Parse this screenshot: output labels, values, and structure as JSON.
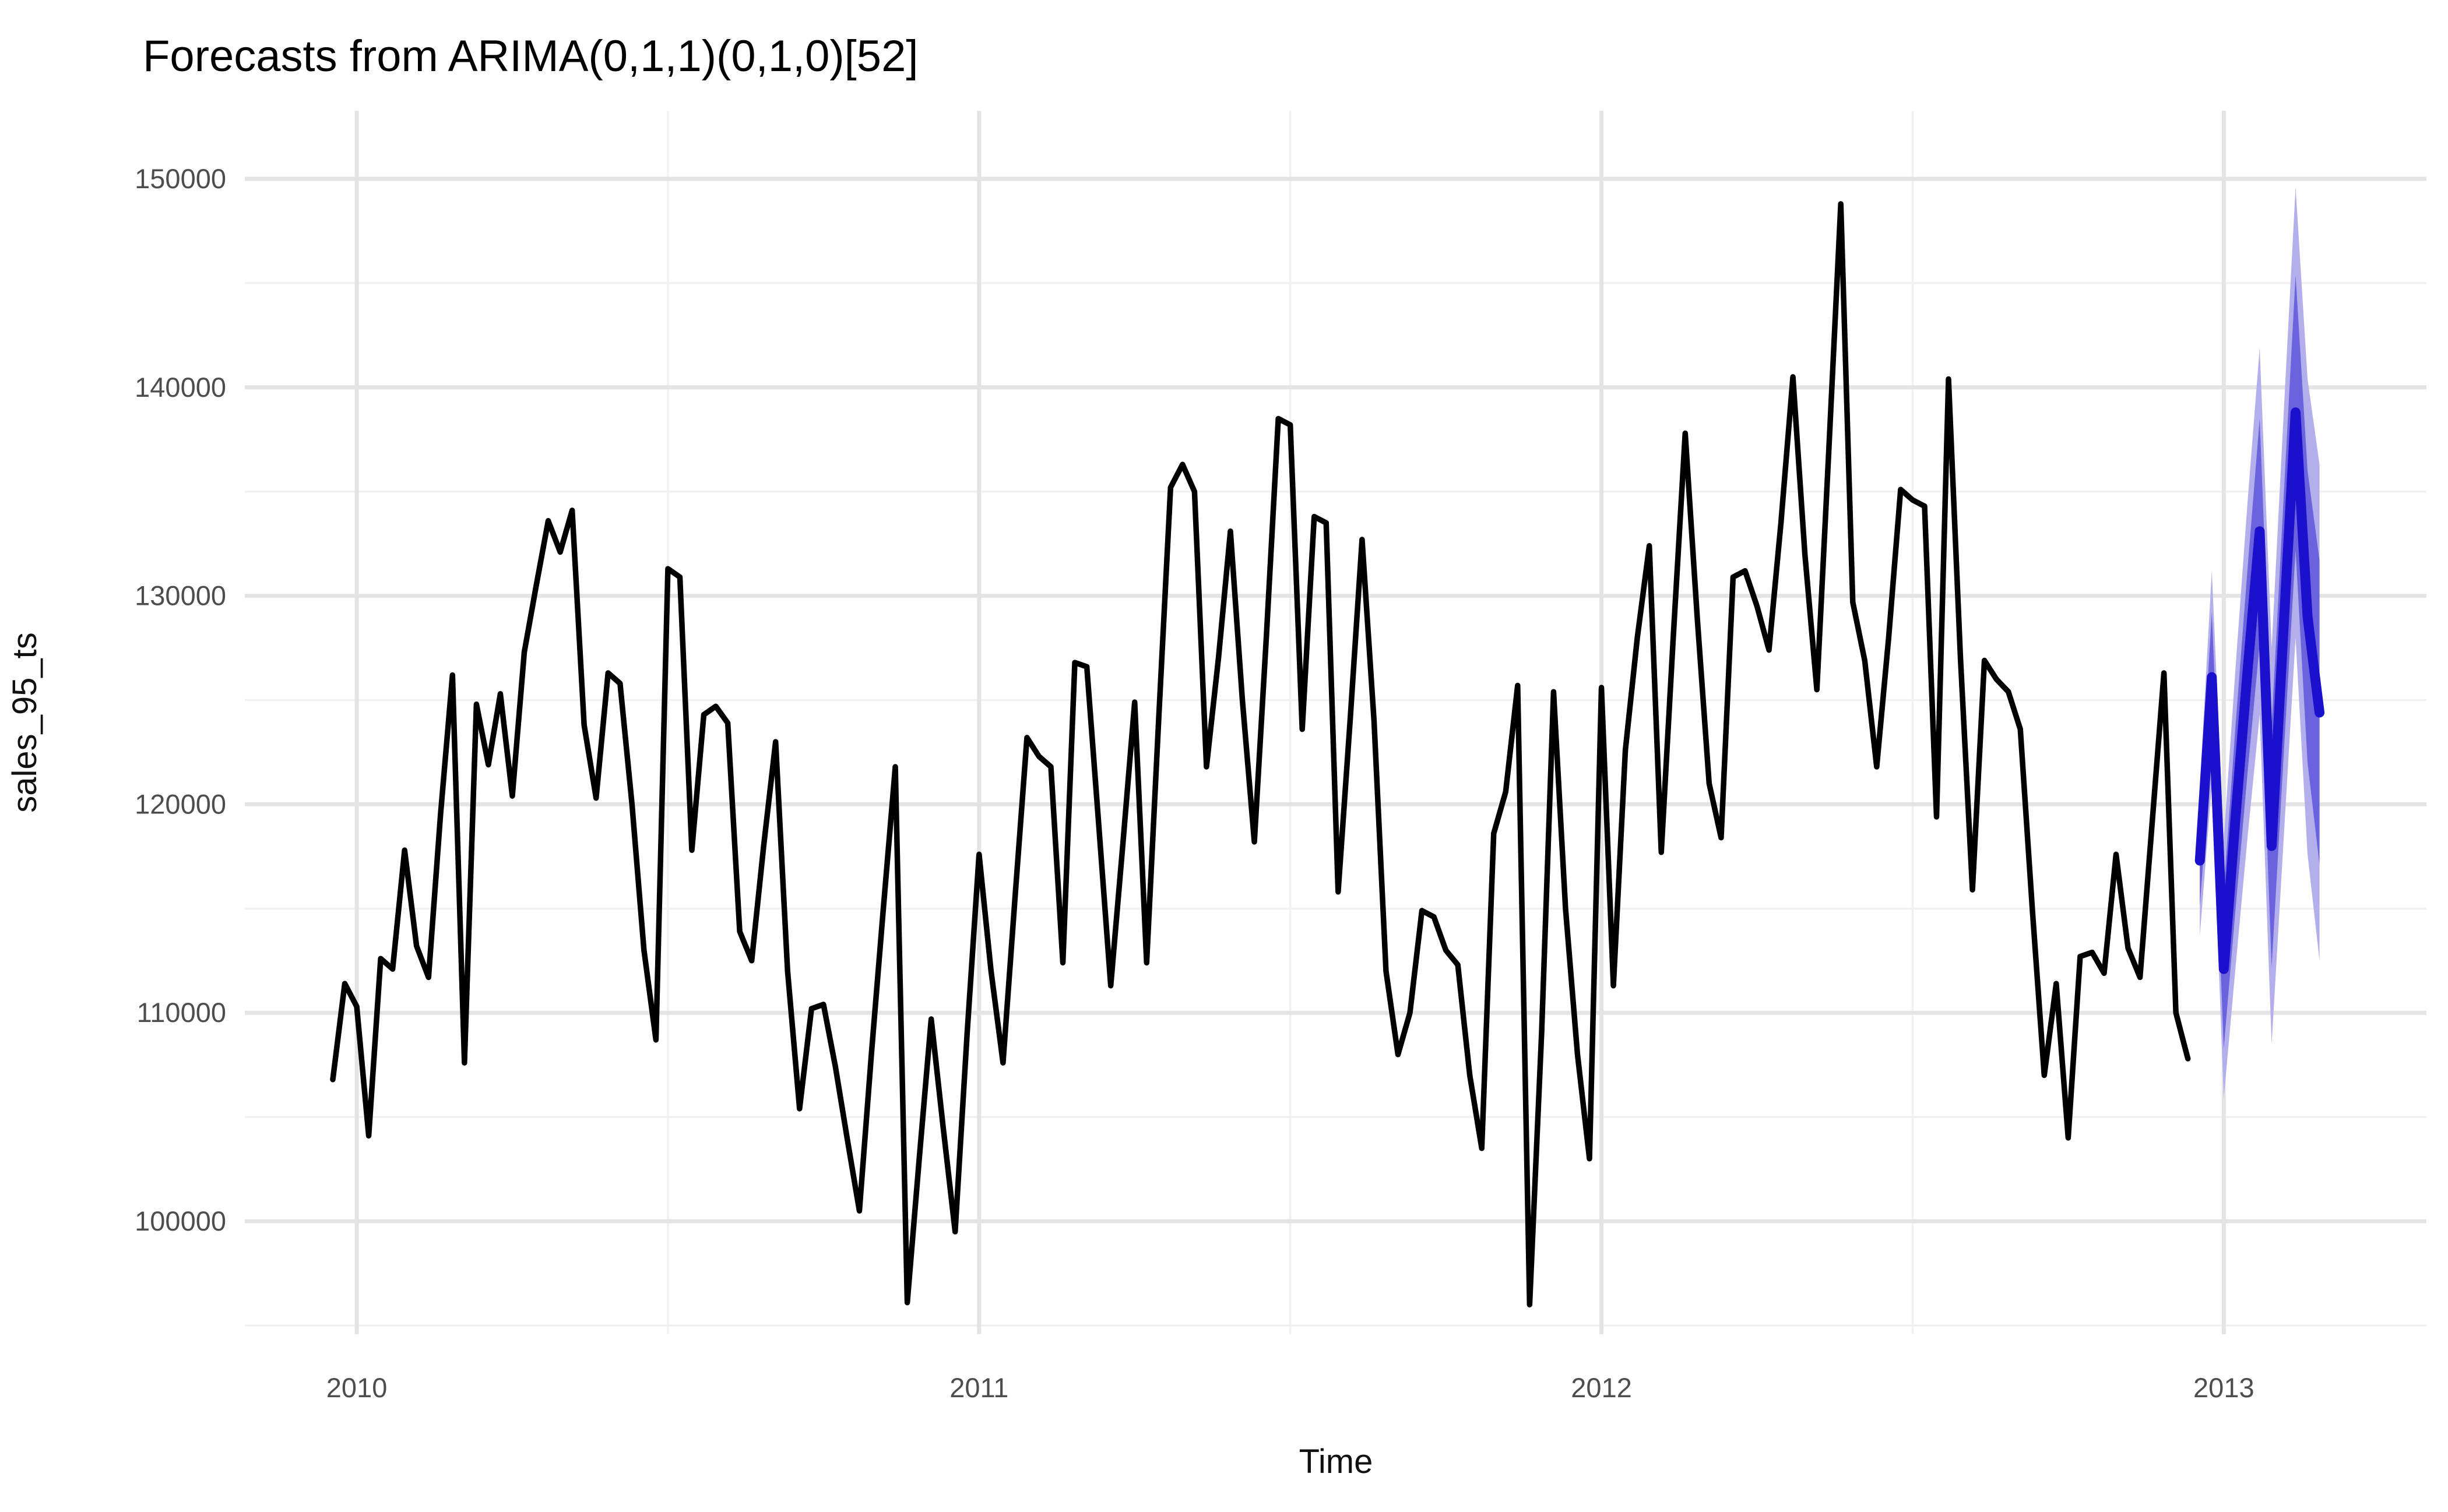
{
  "title": "Forecasts from ARIMA(0,1,1)(0,1,0)[52]",
  "x_axis": {
    "label": "Time",
    "major_ticks": [
      2010,
      2011,
      2012,
      2013
    ],
    "minor_ticks": [
      2010.5,
      2011.5,
      2012.5
    ]
  },
  "y_axis": {
    "label": "sales_95_ts",
    "major_ticks": [
      100000,
      110000,
      120000,
      130000,
      140000,
      150000
    ],
    "minor_ticks": [
      95000,
      105000,
      115000,
      125000,
      135000,
      145000
    ]
  },
  "colors": {
    "background": "#ffffff",
    "observed_line": "#000000",
    "forecast_mean_line": "#1b10cc",
    "band_80": "#6b63dd",
    "band_95": "#b3aeec",
    "grid_major": "#e4e4e4",
    "grid_minor": "#f1f1f1",
    "tick_text": "#4d4d4d",
    "axis_title_text": "#111111",
    "title_text": "#000000"
  },
  "chart_data": {
    "type": "line",
    "title": "Forecasts from ARIMA(0,1,1)(0,1,0)[52]",
    "xlabel": "Time",
    "ylabel": "sales_95_ts",
    "xlim": [
      2009.8201,
      2013.3256
    ],
    "ylim": [
      94579,
      153270
    ],
    "grid": true,
    "legend_position": "none",
    "frequency_per_year": 52,
    "series": [
      {
        "name": "observed",
        "role": "history",
        "start": 2009.9615,
        "step": 0.0192308,
        "values": [
          106800,
          111400,
          110300,
          104100,
          112600,
          112100,
          117800,
          113200,
          111700,
          119500,
          126200,
          107600,
          124800,
          121900,
          125300,
          120400,
          127300,
          130500,
          133600,
          132100,
          134100,
          123800,
          120300,
          126300,
          125800,
          120000,
          113000,
          108700,
          131300,
          130900,
          117800,
          124300,
          124700,
          123900,
          113900,
          112500,
          118000,
          123000,
          112000,
          105400,
          110200,
          110400,
          107400,
          103900,
          100500,
          108000,
          115000,
          121800,
          96100,
          103000,
          109700,
          104500,
          99500,
          109000,
          117600,
          112000,
          107600,
          115500,
          123200,
          122300,
          121800,
          112400,
          126800,
          126600,
          119000,
          111300,
          118000,
          124900,
          112400,
          124000,
          135200,
          136300,
          135000,
          121800,
          127000,
          133100,
          125000,
          118200,
          128000,
          138500,
          138200,
          123600,
          133800,
          133500,
          115800,
          124000,
          132700,
          124000,
          112000,
          108000,
          110000,
          114900,
          114600,
          113000,
          112300,
          107000,
          103500,
          118600,
          120600,
          125700,
          96000,
          109000,
          125400,
          115000,
          108000,
          103000,
          125600,
          111300,
          122600,
          128000,
          132400,
          117700,
          128000,
          137800,
          129000,
          121000,
          118400,
          130900,
          131200,
          129500,
          127400,
          133500,
          140500,
          132000,
          125500,
          137000,
          148800,
          129700,
          126900,
          121800,
          128000,
          135100,
          134600,
          134300,
          119400,
          140400,
          127000,
          115900,
          126900,
          126000,
          125400,
          123600,
          115000,
          107000,
          111400,
          104000,
          112700,
          112900,
          111900,
          117600,
          113100,
          111700,
          119000,
          126300,
          110000,
          107800
        ]
      },
      {
        "name": "forecast_mean",
        "role": "forecast",
        "start": 2012.9615,
        "step": 0.0192308,
        "values": [
          117300,
          126100,
          112100,
          119500,
          126500,
          133100,
          118000,
          128500,
          138800,
          129000,
          124400
        ]
      },
      {
        "name": "lo80",
        "role": "band",
        "start": 2012.9615,
        "step": 0.0192308,
        "values": [
          115100,
          123000,
          108300,
          115100,
          121600,
          127700,
          112200,
          122300,
          132200,
          122000,
          117100
        ]
      },
      {
        "name": "hi80",
        "role": "band",
        "start": 2012.9615,
        "step": 0.0192308,
        "values": [
          119500,
          129200,
          115900,
          123900,
          131400,
          138500,
          123800,
          134700,
          145400,
          136000,
          131700
        ]
      },
      {
        "name": "lo95",
        "role": "band",
        "start": 2012.9615,
        "step": 0.0192308,
        "values": [
          113700,
          121000,
          105900,
          112300,
          118500,
          124300,
          108500,
          118300,
          128000,
          117600,
          112500
        ]
      },
      {
        "name": "hi95",
        "role": "band",
        "start": 2012.9615,
        "step": 0.0192308,
        "values": [
          120900,
          131200,
          118300,
          126700,
          134600,
          141900,
          127500,
          138700,
          149600,
          140400,
          136300
        ]
      }
    ]
  }
}
